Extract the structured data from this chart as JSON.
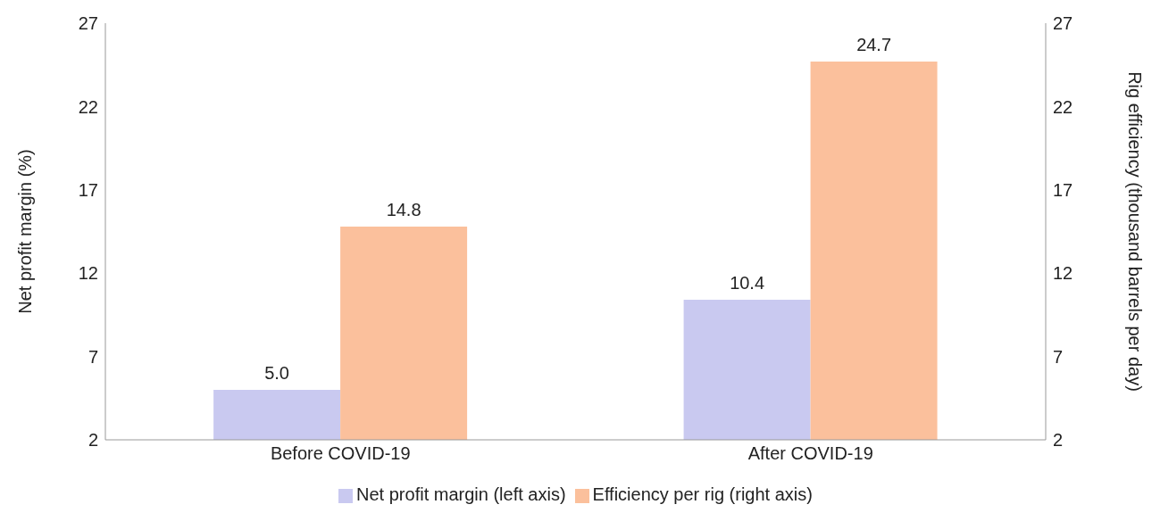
{
  "chart_data": {
    "type": "bar",
    "ylabel": "Net profit margin (%)",
    "y2label": "Rig efficiency (thousand barrels per day)",
    "categories": [
      "Before COVID-19",
      "After COVID-19"
    ],
    "series": [
      {
        "name": "Net profit margin (left axis)",
        "color": "#c9c9f0",
        "values": [
          5.0,
          10.4
        ],
        "value_labels": [
          "5.0",
          "10.4"
        ]
      },
      {
        "name": "Efficiency per rig (right axis)",
        "color": "#fbc09c",
        "values": [
          14.8,
          24.7
        ],
        "value_labels": [
          "14.8",
          "24.7"
        ],
        "axis": "y2"
      }
    ],
    "ylim": [
      2,
      27
    ],
    "yticks": [
      2,
      7,
      12,
      17,
      22,
      27
    ],
    "y2lim": [
      2,
      27
    ],
    "y2ticks": [
      2,
      7,
      12,
      17,
      22,
      27
    ],
    "grid": false,
    "legend": "bottom"
  }
}
